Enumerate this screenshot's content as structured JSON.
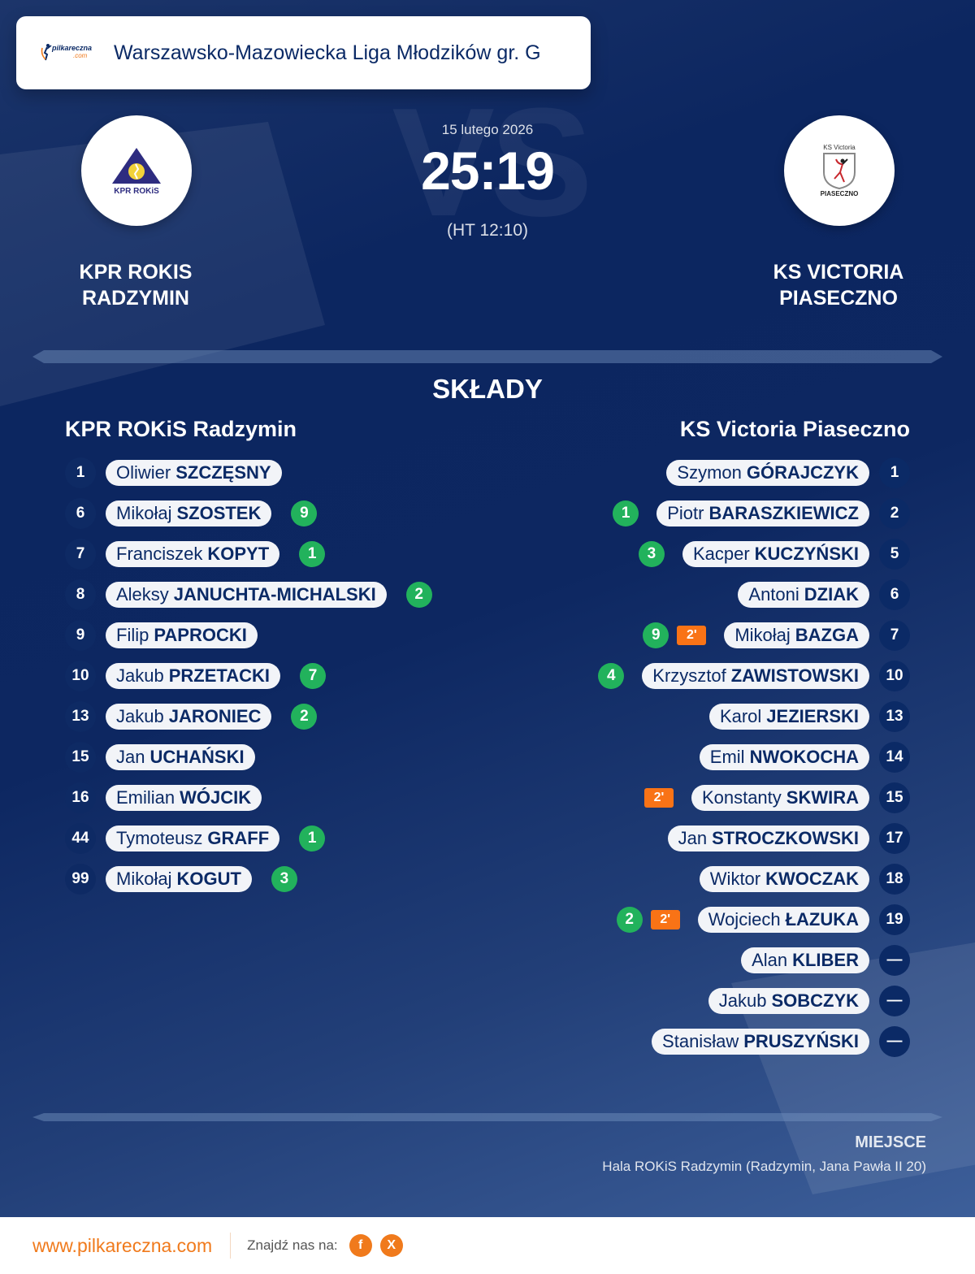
{
  "header": {
    "brand": {
      "name": "pilkareczna",
      "tld": ".com"
    },
    "league_title": "Warszawsko-Mazowiecka Liga Młodzików gr. G"
  },
  "match": {
    "date": "15 lutego 2026",
    "score": "25:19",
    "halftime": "(HT 12:10)",
    "vs_watermark": "VS",
    "home_team": {
      "line1": "KPR ROKIS",
      "line2": "RADZYMIN",
      "logo_text": "KPR ROKiS"
    },
    "away_team": {
      "line1": "KS VICTORIA",
      "line2": "PIASECZNO",
      "logo_top": "KS Victoria",
      "logo_bottom": "PIASECZNO"
    }
  },
  "lineups": {
    "title": "SKŁADY",
    "home": {
      "team": "KPR ROKiS Radzymin",
      "players": [
        {
          "number": "1",
          "first": "Oliwier",
          "last": "SZCZĘSNY",
          "goals": "",
          "suspension": ""
        },
        {
          "number": "6",
          "first": "Mikołaj",
          "last": "SZOSTEK",
          "goals": "9",
          "suspension": ""
        },
        {
          "number": "7",
          "first": "Franciszek",
          "last": "KOPYT",
          "goals": "1",
          "suspension": ""
        },
        {
          "number": "8",
          "first": "Aleksy",
          "last": "JANUCHTA-MICHALSKI",
          "goals": "2",
          "suspension": ""
        },
        {
          "number": "9",
          "first": "Filip",
          "last": "PAPROCKI",
          "goals": "",
          "suspension": ""
        },
        {
          "number": "10",
          "first": "Jakub",
          "last": "PRZETACKI",
          "goals": "7",
          "suspension": ""
        },
        {
          "number": "13",
          "first": "Jakub",
          "last": "JARONIEC",
          "goals": "2",
          "suspension": ""
        },
        {
          "number": "15",
          "first": "Jan",
          "last": "UCHAŃSKI",
          "goals": "",
          "suspension": ""
        },
        {
          "number": "16",
          "first": "Emilian",
          "last": "WÓJCIK",
          "goals": "",
          "suspension": ""
        },
        {
          "number": "44",
          "first": "Tymoteusz",
          "last": "GRAFF",
          "goals": "1",
          "suspension": ""
        },
        {
          "number": "99",
          "first": "Mikołaj",
          "last": "KOGUT",
          "goals": "3",
          "suspension": ""
        }
      ]
    },
    "away": {
      "team": "KS Victoria Piaseczno",
      "players": [
        {
          "number": "1",
          "first": "Szymon",
          "last": "GÓRAJCZYK",
          "goals": "",
          "suspension": ""
        },
        {
          "number": "2",
          "first": "Piotr",
          "last": "BARASZKIEWICZ",
          "goals": "1",
          "suspension": ""
        },
        {
          "number": "5",
          "first": "Kacper",
          "last": "KUCZYŃSKI",
          "goals": "3",
          "suspension": ""
        },
        {
          "number": "6",
          "first": "Antoni",
          "last": "DZIAK",
          "goals": "",
          "suspension": ""
        },
        {
          "number": "7",
          "first": "Mikołaj",
          "last": "BAZGA",
          "goals": "9",
          "suspension": "2'"
        },
        {
          "number": "10",
          "first": "Krzysztof",
          "last": "ZAWISTOWSKI",
          "goals": "4",
          "suspension": ""
        },
        {
          "number": "13",
          "first": "Karol",
          "last": "JEZIERSKI",
          "goals": "",
          "suspension": ""
        },
        {
          "number": "14",
          "first": "Emil",
          "last": "NWOKOCHA",
          "goals": "",
          "suspension": ""
        },
        {
          "number": "15",
          "first": "Konstanty",
          "last": "SKWIRA",
          "goals": "",
          "suspension": "2'"
        },
        {
          "number": "17",
          "first": "Jan",
          "last": "STROCZKOWSKI",
          "goals": "",
          "suspension": ""
        },
        {
          "number": "18",
          "first": "Wiktor",
          "last": "KWOCZAK",
          "goals": "",
          "suspension": ""
        },
        {
          "number": "19",
          "first": "Wojciech",
          "last": "ŁAZUKA",
          "goals": "2",
          "suspension": "2'"
        },
        {
          "number": "—",
          "first": "Alan",
          "last": "KLIBER",
          "goals": "",
          "suspension": ""
        },
        {
          "number": "—",
          "first": "Jakub",
          "last": "SOBCZYK",
          "goals": "",
          "suspension": ""
        },
        {
          "number": "—",
          "first": "Stanisław",
          "last": "PRUSZYŃSKI",
          "goals": "",
          "suspension": ""
        }
      ]
    }
  },
  "venue": {
    "label": "MIEJSCE",
    "value": "Hala ROKiS Radzymin (Radzymin, Jana Pawła II 20)"
  },
  "footer": {
    "url": "www.pilkareczna.com",
    "find_us": "Znajdź nas na:",
    "social": [
      {
        "icon": "facebook-icon",
        "glyph": "f"
      },
      {
        "icon": "x-icon",
        "glyph": "X"
      }
    ]
  },
  "colors": {
    "navy": "#0b2a66",
    "goal_green": "#22b25c",
    "suspension_orange": "#f97316",
    "brand_orange": "#f07a1c"
  }
}
